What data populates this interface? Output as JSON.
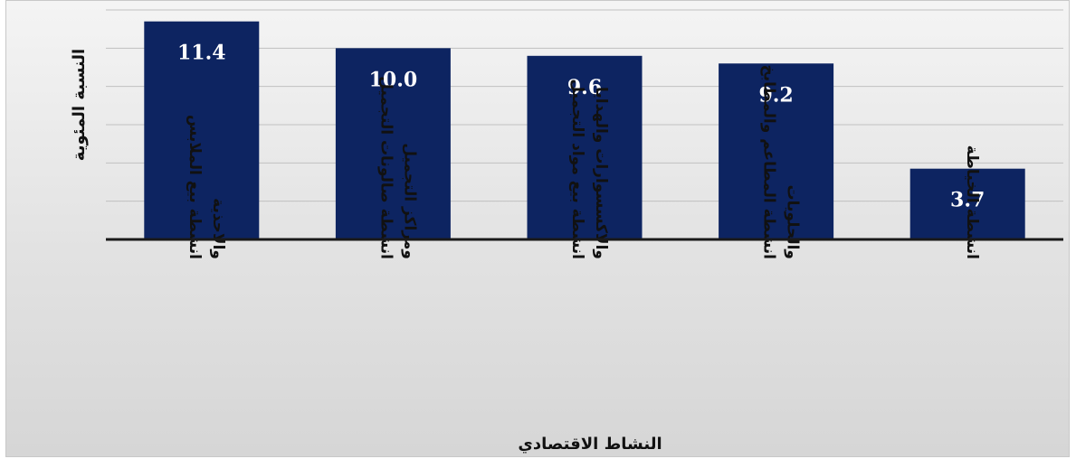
{
  "chart_data": {
    "type": "bar",
    "title": "",
    "xlabel": "النشاط الاقتصادي",
    "ylabel": "النسبة المئوية",
    "categories": [
      [
        "انشطة بيع الملابس",
        "والاحذية"
      ],
      [
        "انشطة صالونات التجميل",
        "ومراكز التجميل"
      ],
      [
        "انشطة بيع مواد التجميل",
        "والاكسسوارات والهدايا"
      ],
      [
        "انشطة المطاعم والمطابخ",
        "والحلويات"
      ],
      [
        "انشطة الخياطة"
      ]
    ],
    "values": [
      11.4,
      10.0,
      9.6,
      9.2,
      3.7
    ],
    "ylim": [
      0,
      12
    ],
    "grid": true,
    "colors": {
      "bar": "#0d2461",
      "bar_label": "#ffffff",
      "grid": "#c0c0c0"
    }
  }
}
